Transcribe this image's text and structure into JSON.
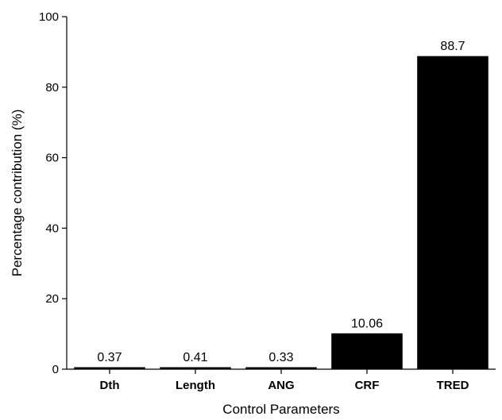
{
  "chart_data": {
    "type": "bar",
    "title": "",
    "xlabel": "Control Parameters",
    "ylabel": "Percentage contribution (%)",
    "categories": [
      "Dth",
      "Length",
      "ANG",
      "CRF",
      "TRED"
    ],
    "values": [
      0.37,
      0.41,
      0.33,
      10.06,
      88.7
    ],
    "data_labels": [
      "0.37",
      "0.41",
      "0.33",
      "10.06",
      "88.7"
    ],
    "ylim": [
      0,
      100
    ],
    "yticks": [
      0,
      20,
      40,
      60,
      80,
      100
    ],
    "ytick_labels": [
      "0",
      "20",
      "40",
      "60",
      "80",
      "100"
    ],
    "grid": false,
    "legend": "none",
    "bar_color": "#000000"
  }
}
